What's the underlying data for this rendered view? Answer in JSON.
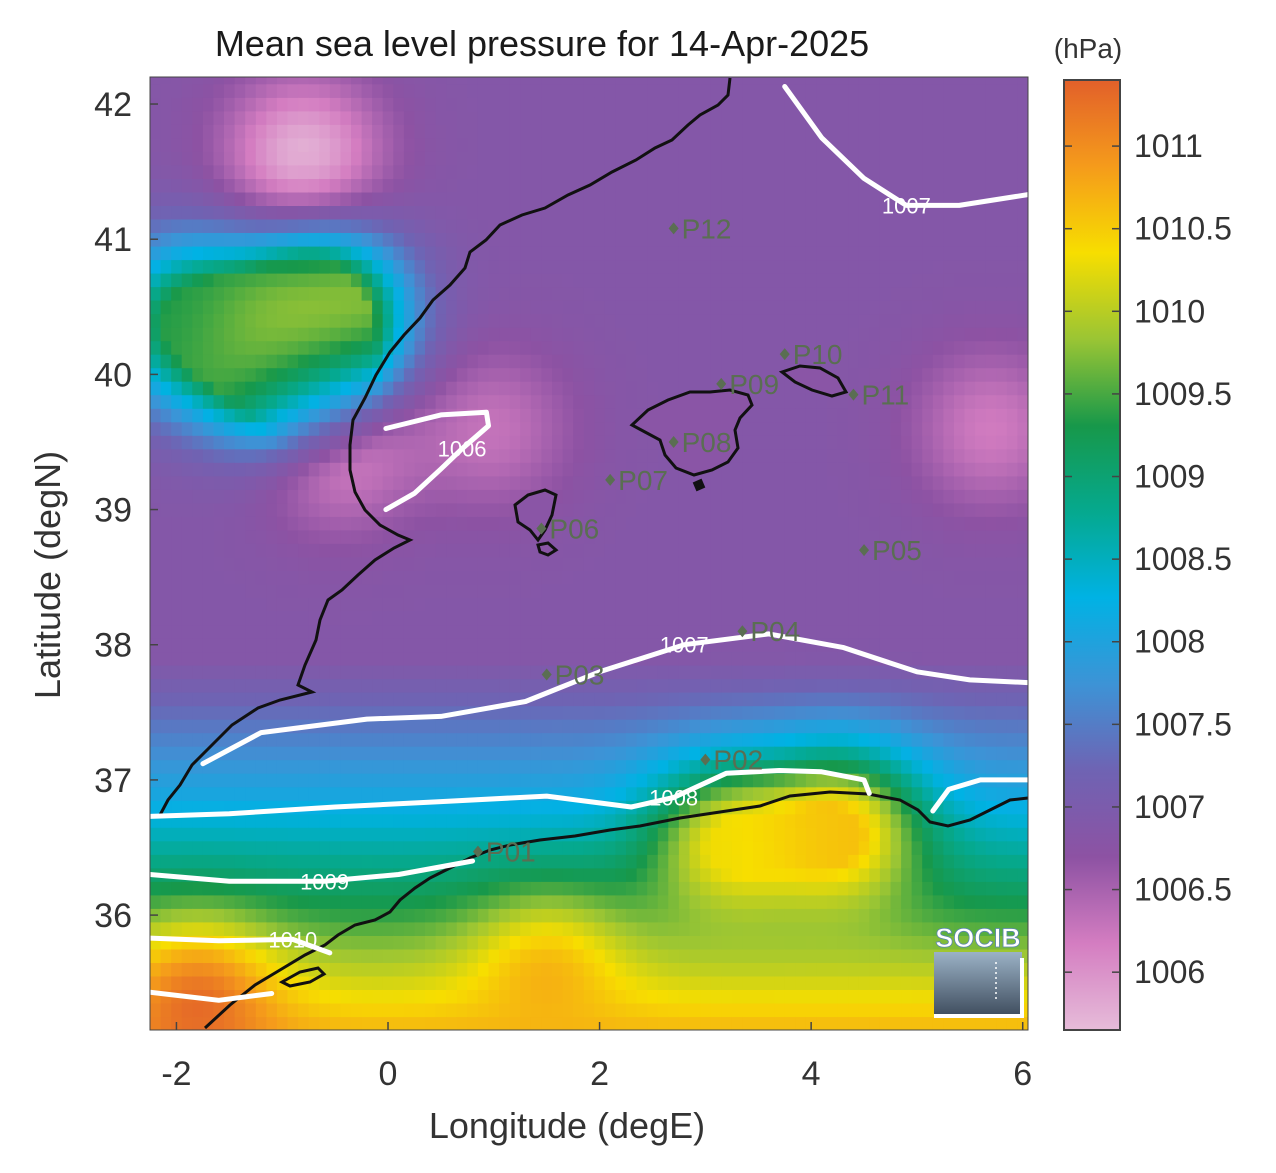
{
  "chart_data": {
    "type": "heatmap",
    "title": "Mean sea level pressure for 14-Apr-2025",
    "xlabel": "Longitude (degE)",
    "ylabel": "Latitude (degN)",
    "xlim": [
      -2.25,
      6.05
    ],
    "ylim": [
      35.15,
      42.2
    ],
    "x_ticks": [
      -2,
      0,
      2,
      4,
      6
    ],
    "y_ticks": [
      36,
      37,
      38,
      39,
      40,
      41,
      42
    ],
    "colorbar": {
      "label": "(hPa)",
      "range": [
        1005.65,
        1011.4
      ],
      "ticks": [
        "1011",
        "1010.5",
        "1010",
        "1009.5",
        "1009",
        "1008.5",
        "1008",
        "1007.5",
        "1007",
        "1006.5",
        "1006"
      ],
      "colormap_stops": [
        "#e6bcd9",
        "#d47dc1",
        "#8d52a3",
        "#6f63b3",
        "#3d93d6",
        "#00b2e4",
        "#05a98f",
        "#17984a",
        "#9ac534",
        "#f7de00",
        "#f59b1b",
        "#e2602a"
      ]
    },
    "contours": [
      {
        "level": "1006",
        "label": "1006",
        "points": [
          [
            -0.02,
            39.6
          ],
          [
            0.5,
            39.7
          ],
          [
            0.93,
            39.72
          ],
          [
            0.95,
            39.62
          ],
          [
            0.7,
            39.45
          ],
          [
            0.5,
            39.3
          ],
          [
            0.25,
            39.12
          ],
          [
            -0.02,
            39.0
          ]
        ]
      },
      {
        "level": "1007",
        "label": "1007",
        "points": [
          [
            3.75,
            42.13
          ],
          [
            4.1,
            41.75
          ],
          [
            4.5,
            41.45
          ],
          [
            4.9,
            41.25
          ],
          [
            5.4,
            41.25
          ],
          [
            6.05,
            41.33
          ]
        ]
      },
      {
        "level": "1007",
        "label": "1007",
        "points": [
          [
            -1.75,
            37.12
          ],
          [
            -1.2,
            37.35
          ],
          [
            -0.2,
            37.45
          ],
          [
            0.5,
            37.47
          ],
          [
            1.3,
            37.58
          ],
          [
            2.0,
            37.8
          ],
          [
            2.8,
            38.0
          ],
          [
            3.6,
            38.08
          ],
          [
            4.3,
            37.98
          ],
          [
            5.0,
            37.8
          ],
          [
            5.5,
            37.74
          ],
          [
            6.05,
            37.72
          ]
        ]
      },
      {
        "level": "1008",
        "label": "1008",
        "points": [
          [
            -2.25,
            36.73
          ],
          [
            -1.5,
            36.75
          ],
          [
            -0.5,
            36.8
          ],
          [
            0.5,
            36.84
          ],
          [
            1.5,
            36.88
          ],
          [
            2.3,
            36.8
          ],
          [
            2.7,
            36.87
          ],
          [
            3.2,
            37.05
          ],
          [
            3.7,
            37.07
          ],
          [
            4.1,
            37.06
          ],
          [
            4.5,
            37.0
          ],
          [
            4.55,
            36.9
          ]
        ]
      },
      {
        "level": "1008",
        "label": "",
        "points": [
          [
            5.15,
            36.77
          ],
          [
            5.3,
            36.93
          ],
          [
            5.6,
            37.0
          ],
          [
            6.05,
            37.0
          ]
        ]
      },
      {
        "level": "1009",
        "label": "1009",
        "points": [
          [
            -2.25,
            36.3
          ],
          [
            -1.5,
            36.25
          ],
          [
            -0.6,
            36.25
          ],
          [
            0.1,
            36.3
          ],
          [
            0.8,
            36.4
          ]
        ]
      },
      {
        "level": "1010",
        "label": "1010",
        "points": [
          [
            -2.25,
            35.83
          ],
          [
            -1.6,
            35.81
          ],
          [
            -0.9,
            35.82
          ],
          [
            -0.55,
            35.72
          ]
        ]
      },
      {
        "level": "1011",
        "label": "",
        "points": [
          [
            -2.25,
            35.43
          ],
          [
            -1.6,
            35.37
          ],
          [
            -1.1,
            35.42
          ]
        ]
      }
    ],
    "stations": [
      {
        "id": "P01",
        "lon": 0.85,
        "lat": 36.47
      },
      {
        "id": "P02",
        "lon": 3.0,
        "lat": 37.15
      },
      {
        "id": "P03",
        "lon": 1.5,
        "lat": 37.78
      },
      {
        "id": "P04",
        "lon": 3.35,
        "lat": 38.1
      },
      {
        "id": "P05",
        "lon": 4.5,
        "lat": 38.7
      },
      {
        "id": "P06",
        "lon": 1.45,
        "lat": 38.86
      },
      {
        "id": "P07",
        "lon": 2.1,
        "lat": 39.22
      },
      {
        "id": "P08",
        "lon": 2.7,
        "lat": 39.5
      },
      {
        "id": "P09",
        "lon": 3.15,
        "lat": 39.93
      },
      {
        "id": "P10",
        "lon": 3.75,
        "lat": 40.15
      },
      {
        "id": "P11",
        "lon": 4.4,
        "lat": 39.85
      },
      {
        "id": "P12",
        "lon": 2.7,
        "lat": 41.08
      }
    ],
    "pressure_centers": [
      {
        "lon": -0.8,
        "lat": 41.6,
        "value": 1005.7
      },
      {
        "lon": -0.5,
        "lat": 39.5,
        "value": 1005.9
      },
      {
        "lon": 1.0,
        "lat": 39.6,
        "value": 1006.3
      },
      {
        "lon": 5.7,
        "lat": 39.6,
        "value": 1006.2
      },
      {
        "lon": -1.9,
        "lat": 40.4,
        "value": 1009.3
      },
      {
        "lon": -0.6,
        "lat": 40.45,
        "value": 1010.0
      },
      {
        "lon": -1.0,
        "lat": 40.1,
        "value": 1010.0
      },
      {
        "lon": 1.5,
        "lat": 35.5,
        "value": 1010.7
      },
      {
        "lon": -1.8,
        "lat": 35.3,
        "value": 1011.3
      },
      {
        "lon": 3.2,
        "lat": 36.5,
        "value": 1010.3
      },
      {
        "lon": 4.3,
        "lat": 36.6,
        "value": 1010.6
      }
    ]
  },
  "logo": {
    "text": "SOCIB"
  }
}
